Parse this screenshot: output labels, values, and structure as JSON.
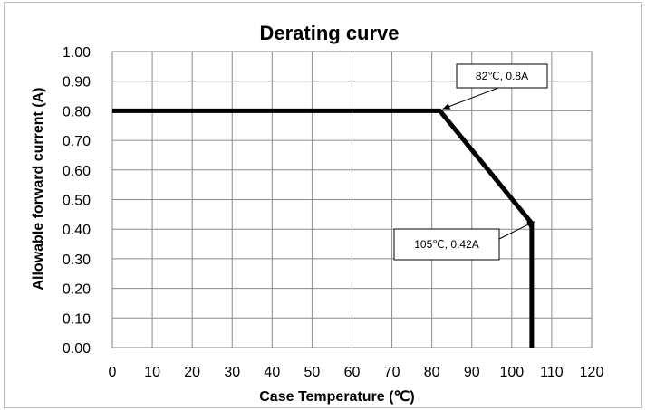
{
  "chart_data": {
    "type": "line",
    "title": "Derating curve",
    "xlabel": "Case Temperature (℃)",
    "ylabel": "Allowable forward current (A)",
    "xlim": [
      0,
      120
    ],
    "ylim": [
      0,
      1.0
    ],
    "x_ticks": [
      "0",
      "10",
      "20",
      "30",
      "40",
      "50",
      "60",
      "70",
      "80",
      "90",
      "100",
      "110",
      "120"
    ],
    "y_ticks": [
      "0.00",
      "0.10",
      "0.20",
      "0.30",
      "0.40",
      "0.50",
      "0.60",
      "0.70",
      "0.80",
      "0.90",
      "1.00"
    ],
    "grid": true,
    "legend": "none",
    "series": [
      {
        "x": [
          0,
          82,
          105,
          105
        ],
        "y": [
          0.8,
          0.8,
          0.42,
          0.0
        ],
        "color": "#000000"
      }
    ],
    "annotations": [
      {
        "text": "82℃, 0.8A",
        "x": 82,
        "y": 0.8
      },
      {
        "text": "105℃, 0.42A",
        "x": 105,
        "y": 0.42
      }
    ]
  }
}
